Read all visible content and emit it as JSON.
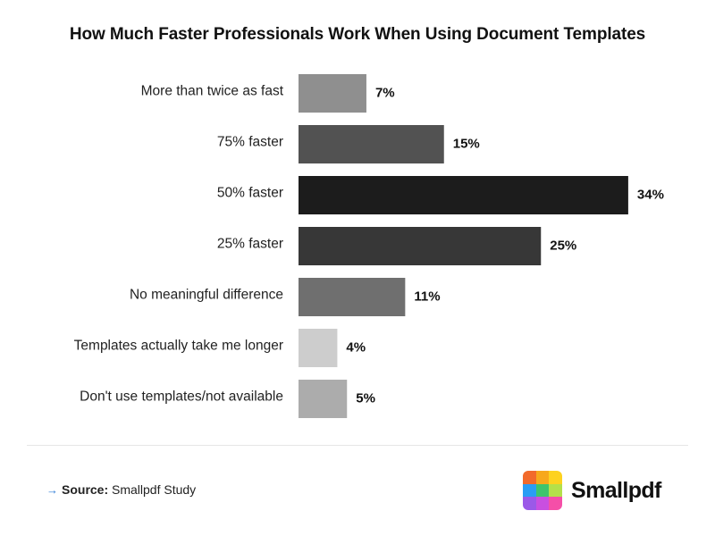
{
  "chart_data": {
    "type": "bar",
    "orientation": "horizontal",
    "title": "How Much Faster Professionals Work When Using Document Templates",
    "categories": [
      "More than twice as fast",
      "75% faster",
      "50% faster",
      "25% faster",
      "No meaningful difference",
      "Templates actually take me longer",
      "Don't use templates/not available"
    ],
    "values": [
      7,
      15,
      34,
      25,
      11,
      4,
      5
    ],
    "value_labels": [
      "7%",
      "15%",
      "34%",
      "25%",
      "11%",
      "4%",
      "5%"
    ],
    "bar_colors": [
      "#8f8f8f",
      "#525252",
      "#1c1c1c",
      "#373737",
      "#6f6f6f",
      "#cdcdcd",
      "#acacac"
    ],
    "grid": false,
    "legend": "none"
  },
  "footer": {
    "source_prefix": "Source:",
    "source_text": "Smallpdf Study"
  },
  "brand": {
    "name": "Smallpdf",
    "logo_colors": [
      "#f26a2b",
      "#f7a81b",
      "#fdd21f",
      "#2a9df4",
      "#3ec46d",
      "#b4e04a",
      "#9b59e8",
      "#c94fe0",
      "#f54fa8"
    ]
  }
}
